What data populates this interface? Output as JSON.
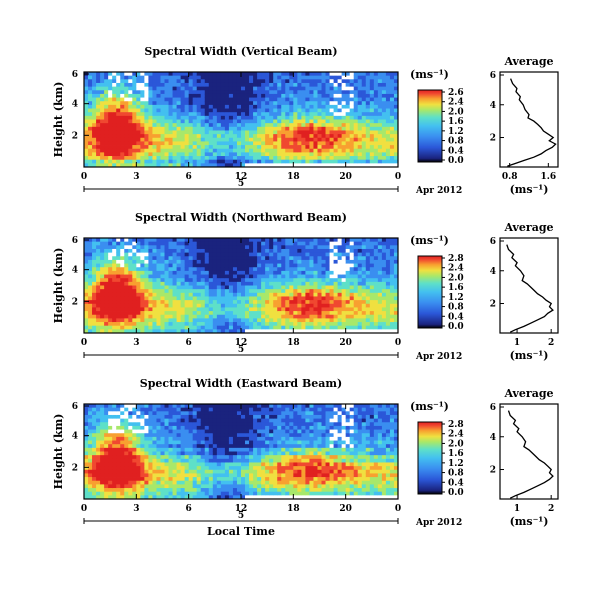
{
  "chart_data": [
    {
      "type": "heatmap",
      "title": "Spectral Width (Vertical Beam)",
      "ylabel": "Height (km)",
      "xlabel": "",
      "x_ticks": [
        "0",
        "3",
        "6",
        "12",
        "18",
        "20",
        "0"
      ],
      "y_ticks": [
        "6",
        "4",
        "2"
      ],
      "date_day": "5",
      "date_label": "Apr 2012",
      "colorbar": {
        "unit": "(ms⁻¹)",
        "ticks": [
          "2.6",
          "2.4",
          "2.0",
          "1.6",
          "1.2",
          "0.8",
          "0.4",
          "0.0"
        ]
      },
      "profile": {
        "title": "Average",
        "unit": "(ms⁻¹)",
        "x_ticks": [
          "0.8",
          "1.6"
        ],
        "y_ticks": [
          "6",
          "4",
          "2"
        ],
        "xlim": [
          0.6,
          1.8
        ],
        "ylim": [
          0.2,
          6.0
        ],
        "x": [
          0.82,
          0.86,
          0.95,
          0.93,
          1.02,
          1.0,
          1.08,
          1.12,
          1.2,
          1.18,
          1.3,
          1.38,
          1.45,
          1.5,
          1.6,
          1.7,
          1.62,
          1.75,
          1.68,
          1.55,
          1.45,
          1.3,
          1.1,
          0.9,
          0.75
        ],
        "y": [
          5.6,
          5.3,
          5.0,
          4.8,
          4.5,
          4.3,
          4.0,
          3.7,
          3.4,
          3.2,
          3.0,
          2.8,
          2.6,
          2.4,
          2.2,
          2.0,
          1.8,
          1.6,
          1.4,
          1.2,
          1.0,
          0.8,
          0.6,
          0.4,
          0.25
        ]
      }
    },
    {
      "type": "heatmap",
      "title": "Spectral Width (Northward Beam)",
      "ylabel": "Height (km)",
      "xlabel": "",
      "x_ticks": [
        "0",
        "3",
        "6",
        "12",
        "18",
        "20",
        "0"
      ],
      "y_ticks": [
        "6",
        "4",
        "2"
      ],
      "date_day": "5",
      "date_label": "Apr 2012",
      "colorbar": {
        "unit": "(ms⁻¹)",
        "ticks": [
          "2.8",
          "2.4",
          "2.0",
          "1.6",
          "1.2",
          "0.8",
          "0.4",
          "0.0"
        ]
      },
      "profile": {
        "title": "Average",
        "unit": "(ms⁻¹)",
        "x_ticks": [
          "1",
          "2"
        ],
        "y_ticks": [
          "6",
          "4",
          "2"
        ],
        "xlim": [
          0.5,
          2.2
        ],
        "ylim": [
          0.2,
          6.0
        ],
        "x": [
          0.7,
          0.75,
          0.9,
          0.85,
          1.0,
          0.95,
          1.1,
          1.2,
          1.15,
          1.3,
          1.4,
          1.5,
          1.6,
          1.75,
          1.85,
          2.0,
          1.95,
          2.05,
          1.9,
          1.8,
          1.6,
          1.4,
          1.2,
          0.95,
          0.8
        ],
        "y": [
          5.6,
          5.3,
          5.0,
          4.8,
          4.5,
          4.3,
          4.0,
          3.7,
          3.4,
          3.2,
          3.0,
          2.8,
          2.6,
          2.4,
          2.2,
          2.0,
          1.8,
          1.6,
          1.4,
          1.2,
          1.0,
          0.8,
          0.6,
          0.4,
          0.25
        ]
      }
    },
    {
      "type": "heatmap",
      "title": "Spectral Width (Eastward Beam)",
      "ylabel": "Height (km)",
      "xlabel": "Local Time",
      "x_ticks": [
        "0",
        "3",
        "6",
        "12",
        "18",
        "20",
        "0"
      ],
      "y_ticks": [
        "6",
        "4",
        "2"
      ],
      "date_day": "5",
      "date_label": "Apr 2012",
      "colorbar": {
        "unit": "(ms⁻¹)",
        "ticks": [
          "2.8",
          "2.4",
          "2.0",
          "1.6",
          "1.2",
          "0.8",
          "0.4",
          "0.0"
        ]
      },
      "profile": {
        "title": "Average",
        "unit": "(ms⁻¹)",
        "x_ticks": [
          "1",
          "2"
        ],
        "y_ticks": [
          "6",
          "4",
          "2"
        ],
        "xlim": [
          0.5,
          2.2
        ],
        "ylim": [
          0.2,
          6.0
        ],
        "x": [
          0.75,
          0.8,
          0.95,
          0.9,
          1.05,
          1.0,
          1.15,
          1.25,
          1.2,
          1.35,
          1.45,
          1.55,
          1.65,
          1.8,
          1.9,
          2.0,
          1.95,
          2.05,
          1.95,
          1.8,
          1.6,
          1.4,
          1.2,
          0.95,
          0.8
        ],
        "y": [
          5.6,
          5.3,
          5.0,
          4.8,
          4.5,
          4.3,
          4.0,
          3.7,
          3.4,
          3.2,
          3.0,
          2.8,
          2.6,
          2.4,
          2.2,
          2.0,
          1.8,
          1.6,
          1.4,
          1.2,
          1.0,
          0.8,
          0.6,
          0.4,
          0.25
        ]
      }
    }
  ],
  "colors": {
    "scale": [
      "#1a237e",
      "#2b57d8",
      "#3a8ef0",
      "#43c0f0",
      "#5ee0c8",
      "#a8e86a",
      "#f0e040",
      "#f8a030",
      "#f04830",
      "#e02020"
    ]
  }
}
